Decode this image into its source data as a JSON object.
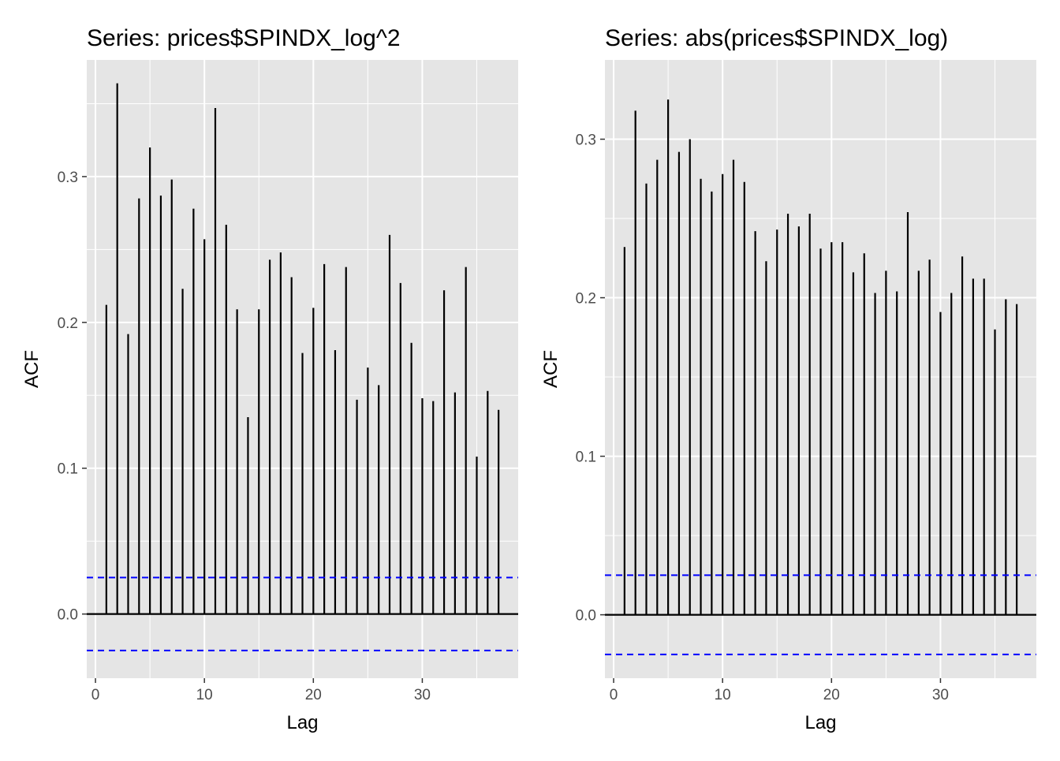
{
  "chart_data": [
    {
      "type": "bar",
      "title": "Series: prices$SPINDX_log^2",
      "xlabel": "Lag",
      "ylabel": "ACF",
      "xlim": [
        -0.8,
        38.8
      ],
      "ylim": [
        -0.044,
        0.38
      ],
      "xticks": [
        0,
        10,
        20,
        30
      ],
      "xtick_labels": [
        "0",
        "10",
        "20",
        "30"
      ],
      "yticks": [
        0.0,
        0.1,
        0.2,
        0.3
      ],
      "ytick_labels": [
        "0.0",
        "0.1",
        "0.2",
        "0.3"
      ],
      "grid": true,
      "background": "#e5e5e5",
      "confidence_band": 0.025,
      "confidence_band_color": "#0000ff",
      "x": [
        1,
        2,
        3,
        4,
        5,
        6,
        7,
        8,
        9,
        10,
        11,
        12,
        13,
        14,
        15,
        16,
        17,
        18,
        19,
        20,
        21,
        22,
        23,
        24,
        25,
        26,
        27,
        28,
        29,
        30,
        31,
        32,
        33,
        34,
        35,
        36,
        37
      ],
      "values": [
        0.212,
        0.364,
        0.192,
        0.285,
        0.32,
        0.287,
        0.298,
        0.223,
        0.278,
        0.257,
        0.347,
        0.267,
        0.209,
        0.135,
        0.209,
        0.243,
        0.248,
        0.231,
        0.179,
        0.21,
        0.24,
        0.181,
        0.238,
        0.147,
        0.169,
        0.157,
        0.26,
        0.227,
        0.186,
        0.148,
        0.146,
        0.222,
        0.152,
        0.238,
        0.108,
        0.153,
        0.14
      ]
    },
    {
      "type": "bar",
      "title": "Series: abs(prices$SPINDX_log)",
      "xlabel": "Lag",
      "ylabel": "ACF",
      "xlim": [
        -0.8,
        38.8
      ],
      "ylim": [
        -0.04,
        0.35
      ],
      "xticks": [
        0,
        10,
        20,
        30
      ],
      "xtick_labels": [
        "0",
        "10",
        "20",
        "30"
      ],
      "yticks": [
        0.0,
        0.1,
        0.2,
        0.3
      ],
      "ytick_labels": [
        "0.0",
        "0.1",
        "0.2",
        "0.3"
      ],
      "grid": true,
      "background": "#e5e5e5",
      "confidence_band": 0.025,
      "confidence_band_color": "#0000ff",
      "x": [
        1,
        2,
        3,
        4,
        5,
        6,
        7,
        8,
        9,
        10,
        11,
        12,
        13,
        14,
        15,
        16,
        17,
        18,
        19,
        20,
        21,
        22,
        23,
        24,
        25,
        26,
        27,
        28,
        29,
        30,
        31,
        32,
        33,
        34,
        35,
        36,
        37
      ],
      "values": [
        0.232,
        0.318,
        0.272,
        0.287,
        0.325,
        0.292,
        0.3,
        0.275,
        0.267,
        0.278,
        0.287,
        0.273,
        0.242,
        0.223,
        0.243,
        0.253,
        0.245,
        0.253,
        0.231,
        0.235,
        0.235,
        0.216,
        0.228,
        0.203,
        0.217,
        0.204,
        0.254,
        0.217,
        0.224,
        0.191,
        0.203,
        0.226,
        0.212,
        0.212,
        0.18,
        0.199,
        0.196
      ]
    }
  ]
}
